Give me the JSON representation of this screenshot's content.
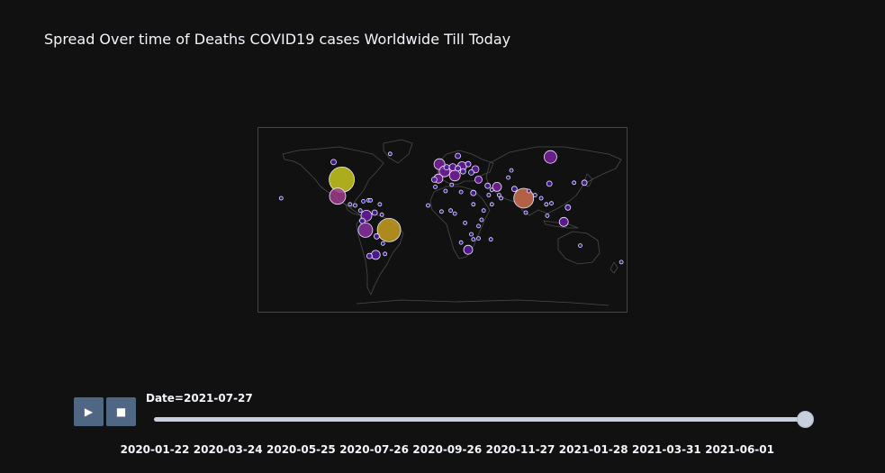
{
  "title": "Spread Over time of Deaths COVID19 cases Worldwide Till Today",
  "colors": {
    "background": "#111111",
    "land_border": "#4a4a4a",
    "frame": "#444444",
    "button": "#506784",
    "slider": "#c8d0e0"
  },
  "controls": {
    "play_icon": "▶",
    "stop_icon": "■"
  },
  "slider": {
    "current_value": "Date=2021-07-27",
    "position_fraction": 1.0,
    "ticks": [
      "2020-01-22",
      "2020-03-24",
      "2020-05-25",
      "2020-07-26",
      "2020-09-26",
      "2020-11-27",
      "2021-01-28",
      "2021-03-31",
      "2021-06-01"
    ]
  },
  "map_data": {
    "projection": "equirectangular",
    "lon_range": [
      -180,
      180
    ],
    "lat_range": [
      -90,
      90
    ],
    "bubbles": [
      {
        "lon": -98,
        "lat": 39,
        "size": 14,
        "color": "#c8c820"
      },
      {
        "lon": -52,
        "lat": -10,
        "size": 13,
        "color": "#c8a020"
      },
      {
        "lon": 79,
        "lat": 21,
        "size": 11,
        "color": "#d07050"
      },
      {
        "lon": -102,
        "lat": 23,
        "size": 9,
        "color": "#a03c8c"
      },
      {
        "lon": -75,
        "lat": -10,
        "size": 8,
        "color": "#8a30a0"
      },
      {
        "lon": 105,
        "lat": 61,
        "size": 7,
        "color": "#7a1f9c"
      },
      {
        "lon": -3,
        "lat": 54,
        "size": 6,
        "color": "#7a1f9c"
      },
      {
        "lon": 12,
        "lat": 43,
        "size": 6,
        "color": "#7a1f9c"
      },
      {
        "lon": -4,
        "lat": 40,
        "size": 5,
        "color": "#7a1f9c"
      },
      {
        "lon": 2,
        "lat": 47,
        "size": 6,
        "color": "#7a1f9c"
      },
      {
        "lon": 53,
        "lat": 32,
        "size": 5,
        "color": "#7a1f9c"
      },
      {
        "lon": 25,
        "lat": -29,
        "size": 5,
        "color": "#5a1aa0"
      },
      {
        "lon": -65,
        "lat": -34,
        "size": 5,
        "color": "#5a1aa0"
      },
      {
        "lon": -74,
        "lat": 4,
        "size": 6,
        "color": "#6a1aa0"
      },
      {
        "lon": 118,
        "lat": -2,
        "size": 5,
        "color": "#6a1aa0"
      },
      {
        "lon": 19,
        "lat": 52,
        "size": 5,
        "color": "#6a1aa0"
      },
      {
        "lon": 10,
        "lat": 51,
        "size": 4,
        "color": "#6a1aa0"
      },
      {
        "lon": 32,
        "lat": 49,
        "size": 4,
        "color": "#6a1aa0"
      },
      {
        "lon": 35,
        "lat": 39,
        "size": 4,
        "color": "#6a1aa0"
      },
      {
        "lon": 25,
        "lat": 54,
        "size": 3,
        "color": "#5a1aa0"
      },
      {
        "lon": -71,
        "lat": -35,
        "size": 3,
        "color": "#5a1aa0"
      },
      {
        "lon": 122,
        "lat": 12,
        "size": 3,
        "color": "#5a1aa0"
      },
      {
        "lon": 44,
        "lat": 33,
        "size": 3,
        "color": "#4a1aa0"
      },
      {
        "lon": 30,
        "lat": 26,
        "size": 3,
        "color": "#4a1aa0"
      },
      {
        "lon": 70,
        "lat": 30,
        "size": 3,
        "color": "#4a1aa0"
      },
      {
        "lon": 28,
        "lat": 46,
        "size": 3,
        "color": "#4a1aa0"
      },
      {
        "lon": 20,
        "lat": 47,
        "size": 3,
        "color": "#4a1aa0"
      },
      {
        "lon": 15,
        "lat": 50,
        "size": 3,
        "color": "#4a1aa0"
      },
      {
        "lon": 4,
        "lat": 51,
        "size": 3,
        "color": "#4a1aa0"
      },
      {
        "lon": 15,
        "lat": 62,
        "size": 3,
        "color": "#4a1aa0"
      },
      {
        "lon": -106,
        "lat": 56,
        "size": 3,
        "color": "#4a1aa0"
      },
      {
        "lon": -8,
        "lat": 39,
        "size": 3,
        "color": "#4a1aa0"
      },
      {
        "lon": -78,
        "lat": -1,
        "size": 3,
        "color": "#4a1aa0"
      },
      {
        "lon": -66,
        "lat": 7,
        "size": 3,
        "color": "#4a1aa0"
      },
      {
        "lon": -64,
        "lat": -16,
        "size": 3,
        "color": "#4a1aa0"
      },
      {
        "lon": -85,
        "lat": 14,
        "size": 2,
        "color": "#3a1aa0"
      },
      {
        "lon": -90,
        "lat": 15,
        "size": 2,
        "color": "#3a1aa0"
      },
      {
        "lon": -80,
        "lat": 9,
        "size": 2,
        "color": "#3a1aa0"
      },
      {
        "lon": -72,
        "lat": 19,
        "size": 2,
        "color": "#3a1aa0"
      },
      {
        "lon": -70,
        "lat": 19,
        "size": 2,
        "color": "#3a1aa0"
      },
      {
        "lon": -58,
        "lat": -23,
        "size": 2,
        "color": "#3a1aa0"
      },
      {
        "lon": -56,
        "lat": -33,
        "size": 2,
        "color": "#3a1aa0"
      },
      {
        "lon": 3,
        "lat": 28,
        "size": 2,
        "color": "#3a1aa0"
      },
      {
        "lon": 9,
        "lat": 34,
        "size": 2,
        "color": "#3a1aa0"
      },
      {
        "lon": -7,
        "lat": 32,
        "size": 2,
        "color": "#3a1aa0"
      },
      {
        "lon": 18,
        "lat": 27,
        "size": 2,
        "color": "#3a1aa0"
      },
      {
        "lon": 30,
        "lat": 15,
        "size": 2,
        "color": "#3a1aa0"
      },
      {
        "lon": 40,
        "lat": 9,
        "size": 2,
        "color": "#3a1aa0"
      },
      {
        "lon": 38,
        "lat": 0,
        "size": 2,
        "color": "#3a1aa0"
      },
      {
        "lon": 8,
        "lat": 9,
        "size": 2,
        "color": "#3a1aa0"
      },
      {
        "lon": -1,
        "lat": 8,
        "size": 2,
        "color": "#3a1aa0"
      },
      {
        "lon": -14,
        "lat": 14,
        "size": 2,
        "color": "#3a1aa0"
      },
      {
        "lon": 12,
        "lat": 6,
        "size": 2,
        "color": "#3a1aa0"
      },
      {
        "lon": 22,
        "lat": -3,
        "size": 2,
        "color": "#3a1aa0"
      },
      {
        "lon": 35,
        "lat": -6,
        "size": 2,
        "color": "#3a1aa0"
      },
      {
        "lon": 28,
        "lat": -14,
        "size": 2,
        "color": "#3a1aa0"
      },
      {
        "lon": 30,
        "lat": -19,
        "size": 2,
        "color": "#3a1aa0"
      },
      {
        "lon": 35,
        "lat": -18,
        "size": 2,
        "color": "#3a1aa0"
      },
      {
        "lon": 47,
        "lat": -19,
        "size": 2,
        "color": "#3a1aa0"
      },
      {
        "lon": 18,
        "lat": -22,
        "size": 2,
        "color": "#3a1aa0"
      },
      {
        "lon": 45,
        "lat": 24,
        "size": 2,
        "color": "#3a1aa0"
      },
      {
        "lon": 48,
        "lat": 29,
        "size": 2,
        "color": "#3a1aa0"
      },
      {
        "lon": 55,
        "lat": 24,
        "size": 2,
        "color": "#3a1aa0"
      },
      {
        "lon": 57,
        "lat": 21,
        "size": 2,
        "color": "#3a1aa0"
      },
      {
        "lon": 48,
        "lat": 15,
        "size": 2,
        "color": "#3a1aa0"
      },
      {
        "lon": 67,
        "lat": 48,
        "size": 2,
        "color": "#3a1aa0"
      },
      {
        "lon": 64,
        "lat": 41,
        "size": 2,
        "color": "#3a1aa0"
      },
      {
        "lon": 90,
        "lat": 24,
        "size": 2,
        "color": "#3a1aa0"
      },
      {
        "lon": 81,
        "lat": 7,
        "size": 2,
        "color": "#3a1aa0"
      },
      {
        "lon": 84,
        "lat": 28,
        "size": 2,
        "color": "#3a1aa0"
      },
      {
        "lon": 101,
        "lat": 15,
        "size": 2,
        "color": "#3a1aa0"
      },
      {
        "lon": 106,
        "lat": 16,
        "size": 2,
        "color": "#3a1aa0"
      },
      {
        "lon": 102,
        "lat": 4,
        "size": 2,
        "color": "#3a1aa0"
      },
      {
        "lon": 96,
        "lat": 21,
        "size": 2,
        "color": "#3a1aa0"
      },
      {
        "lon": 104,
        "lat": 35,
        "size": 3,
        "color": "#4a1aa0"
      },
      {
        "lon": 128,
        "lat": 36,
        "size": 2,
        "color": "#3a1aa0"
      },
      {
        "lon": 138,
        "lat": 36,
        "size": 3,
        "color": "#4a1aa0"
      },
      {
        "lon": 134,
        "lat": -25,
        "size": 2,
        "color": "#3a1aa0"
      },
      {
        "lon": 174,
        "lat": -41,
        "size": 2,
        "color": "#3a1aa0"
      },
      {
        "lon": -157,
        "lat": 21,
        "size": 2,
        "color": "#3a1aa0"
      },
      {
        "lon": -77,
        "lat": 18,
        "size": 2,
        "color": "#3a1aa0"
      },
      {
        "lon": -61,
        "lat": 15,
        "size": 2,
        "color": "#3a1aa0"
      },
      {
        "lon": -59,
        "lat": 5,
        "size": 2,
        "color": "#3a1aa0"
      },
      {
        "lon": -51,
        "lat": 64,
        "size": 2,
        "color": "#3a1aa0"
      }
    ]
  }
}
